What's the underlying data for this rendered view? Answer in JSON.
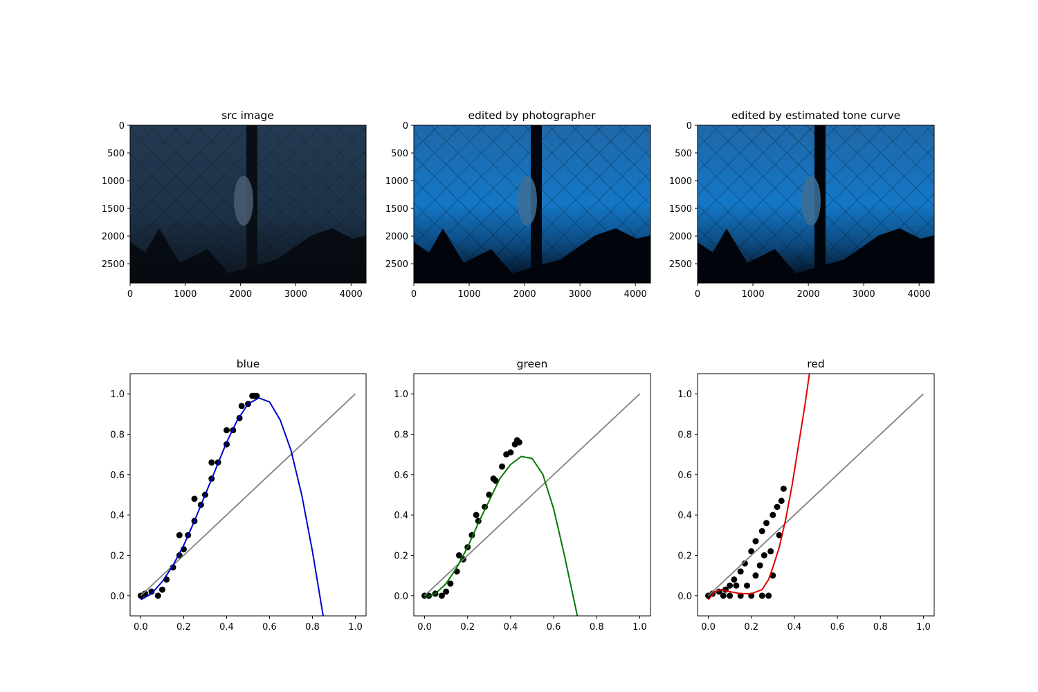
{
  "figure": {
    "image_panels": [
      {
        "title": "src image",
        "variant": "dark"
      },
      {
        "title": "edited by photographer",
        "variant": "bright"
      },
      {
        "title": "edited by estimated tone curve",
        "variant": "bright"
      }
    ],
    "image_axes": {
      "x_ticks": [
        "0",
        "1000",
        "2000",
        "3000",
        "4000"
      ],
      "y_ticks": [
        "0",
        "500",
        "1000",
        "1500",
        "2000",
        "2500"
      ],
      "xlim": [
        0,
        4272
      ],
      "ylim": [
        0,
        2848
      ]
    }
  },
  "chart_data": [
    {
      "type": "scatter",
      "title": "blue",
      "xlim": [
        -0.05,
        1.05
      ],
      "ylim": [
        -0.1,
        1.1
      ],
      "x_ticks": [
        "0.0",
        "0.2",
        "0.4",
        "0.6",
        "0.8",
        "1.0"
      ],
      "y_ticks": [
        "0.0",
        "0.2",
        "0.4",
        "0.6",
        "0.8",
        "1.0"
      ],
      "scatter": {
        "color": "#000000",
        "points": [
          [
            0.0,
            0.0
          ],
          [
            0.02,
            0.01
          ],
          [
            0.05,
            0.02
          ],
          [
            0.08,
            0.0
          ],
          [
            0.1,
            0.03
          ],
          [
            0.12,
            0.08
          ],
          [
            0.15,
            0.14
          ],
          [
            0.18,
            0.2
          ],
          [
            0.2,
            0.23
          ],
          [
            0.22,
            0.3
          ],
          [
            0.25,
            0.37
          ],
          [
            0.28,
            0.45
          ],
          [
            0.3,
            0.5
          ],
          [
            0.33,
            0.58
          ],
          [
            0.36,
            0.66
          ],
          [
            0.4,
            0.75
          ],
          [
            0.43,
            0.82
          ],
          [
            0.46,
            0.88
          ],
          [
            0.5,
            0.95
          ],
          [
            0.53,
            0.99
          ],
          [
            0.54,
            0.99
          ],
          [
            0.18,
            0.3
          ],
          [
            0.25,
            0.48
          ],
          [
            0.33,
            0.66
          ],
          [
            0.4,
            0.82
          ],
          [
            0.47,
            0.94
          ],
          [
            0.52,
            0.99
          ]
        ]
      },
      "fit_curve": {
        "color": "#0000cc",
        "points": [
          [
            0.0,
            -0.02
          ],
          [
            0.05,
            0.01
          ],
          [
            0.1,
            0.07
          ],
          [
            0.15,
            0.15
          ],
          [
            0.2,
            0.25
          ],
          [
            0.25,
            0.37
          ],
          [
            0.3,
            0.5
          ],
          [
            0.35,
            0.63
          ],
          [
            0.4,
            0.76
          ],
          [
            0.45,
            0.87
          ],
          [
            0.5,
            0.95
          ],
          [
            0.55,
            0.98
          ],
          [
            0.6,
            0.96
          ],
          [
            0.65,
            0.87
          ],
          [
            0.7,
            0.72
          ],
          [
            0.75,
            0.5
          ],
          [
            0.8,
            0.22
          ],
          [
            0.85,
            -0.1
          ]
        ]
      },
      "identity_line": {
        "color": "#808080",
        "points": [
          [
            0.0,
            0.0
          ],
          [
            1.0,
            1.0
          ]
        ]
      }
    },
    {
      "type": "scatter",
      "title": "green",
      "xlim": [
        -0.05,
        1.05
      ],
      "ylim": [
        -0.1,
        1.1
      ],
      "x_ticks": [
        "0.0",
        "0.2",
        "0.4",
        "0.6",
        "0.8",
        "1.0"
      ],
      "y_ticks": [
        "0.0",
        "0.2",
        "0.4",
        "0.6",
        "0.8",
        "1.0"
      ],
      "scatter": {
        "color": "#000000",
        "points": [
          [
            0.0,
            0.0
          ],
          [
            0.02,
            0.0
          ],
          [
            0.05,
            0.01
          ],
          [
            0.08,
            0.0
          ],
          [
            0.1,
            0.02
          ],
          [
            0.12,
            0.06
          ],
          [
            0.15,
            0.12
          ],
          [
            0.18,
            0.18
          ],
          [
            0.2,
            0.24
          ],
          [
            0.22,
            0.3
          ],
          [
            0.25,
            0.37
          ],
          [
            0.28,
            0.44
          ],
          [
            0.3,
            0.5
          ],
          [
            0.33,
            0.57
          ],
          [
            0.36,
            0.64
          ],
          [
            0.4,
            0.71
          ],
          [
            0.42,
            0.75
          ],
          [
            0.43,
            0.77
          ],
          [
            0.44,
            0.76
          ],
          [
            0.16,
            0.2
          ],
          [
            0.24,
            0.4
          ],
          [
            0.32,
            0.58
          ],
          [
            0.38,
            0.7
          ]
        ]
      },
      "fit_curve": {
        "color": "#007700",
        "points": [
          [
            0.0,
            -0.01
          ],
          [
            0.05,
            0.01
          ],
          [
            0.1,
            0.06
          ],
          [
            0.15,
            0.14
          ],
          [
            0.2,
            0.24
          ],
          [
            0.25,
            0.36
          ],
          [
            0.3,
            0.47
          ],
          [
            0.35,
            0.58
          ],
          [
            0.4,
            0.65
          ],
          [
            0.45,
            0.69
          ],
          [
            0.5,
            0.68
          ],
          [
            0.55,
            0.6
          ],
          [
            0.6,
            0.43
          ],
          [
            0.65,
            0.2
          ],
          [
            0.71,
            -0.1
          ]
        ]
      },
      "identity_line": {
        "color": "#808080",
        "points": [
          [
            0.0,
            0.0
          ],
          [
            1.0,
            1.0
          ]
        ]
      }
    },
    {
      "type": "scatter",
      "title": "red",
      "xlim": [
        -0.05,
        1.05
      ],
      "ylim": [
        -0.1,
        1.1
      ],
      "x_ticks": [
        "0.0",
        "0.2",
        "0.4",
        "0.6",
        "0.8",
        "1.0"
      ],
      "y_ticks": [
        "0.0",
        "0.2",
        "0.4",
        "0.6",
        "0.8",
        "1.0"
      ],
      "scatter": {
        "color": "#000000",
        "points": [
          [
            0.0,
            0.0
          ],
          [
            0.02,
            0.01
          ],
          [
            0.05,
            0.02
          ],
          [
            0.08,
            0.03
          ],
          [
            0.1,
            0.05
          ],
          [
            0.12,
            0.08
          ],
          [
            0.15,
            0.12
          ],
          [
            0.17,
            0.16
          ],
          [
            0.2,
            0.22
          ],
          [
            0.22,
            0.27
          ],
          [
            0.25,
            0.32
          ],
          [
            0.27,
            0.36
          ],
          [
            0.3,
            0.4
          ],
          [
            0.32,
            0.44
          ],
          [
            0.34,
            0.47
          ],
          [
            0.35,
            0.53
          ],
          [
            0.2,
            0.0
          ],
          [
            0.25,
            0.0
          ],
          [
            0.28,
            0.0
          ],
          [
            0.3,
            0.1
          ],
          [
            0.15,
            0.0
          ],
          [
            0.1,
            0.0
          ],
          [
            0.22,
            0.1
          ],
          [
            0.18,
            0.05
          ],
          [
            0.26,
            0.2
          ],
          [
            0.29,
            0.22
          ],
          [
            0.13,
            0.05
          ],
          [
            0.07,
            0.0
          ],
          [
            0.24,
            0.15
          ],
          [
            0.33,
            0.3
          ]
        ]
      },
      "fit_curve": {
        "color": "#dd0000",
        "points": [
          [
            0.0,
            -0.02
          ],
          [
            0.03,
            0.02
          ],
          [
            0.06,
            0.03
          ],
          [
            0.1,
            0.02
          ],
          [
            0.15,
            0.01
          ],
          [
            0.2,
            0.01
          ],
          [
            0.25,
            0.03
          ],
          [
            0.28,
            0.08
          ],
          [
            0.3,
            0.14
          ],
          [
            0.33,
            0.24
          ],
          [
            0.36,
            0.38
          ],
          [
            0.39,
            0.55
          ],
          [
            0.42,
            0.75
          ],
          [
            0.45,
            0.95
          ],
          [
            0.47,
            1.1
          ]
        ]
      },
      "identity_line": {
        "color": "#808080",
        "points": [
          [
            0.0,
            0.0
          ],
          [
            1.0,
            1.0
          ]
        ]
      }
    }
  ]
}
